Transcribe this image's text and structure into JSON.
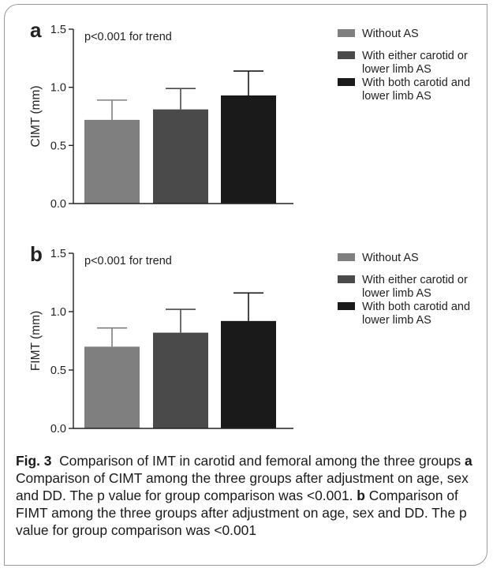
{
  "chart_data": [
    {
      "type": "bar",
      "panel_letter": "a",
      "annotation": "p<0.001 for trend",
      "ylabel": "CIMT (mm)",
      "ylim": [
        0,
        1.5
      ],
      "yticks": [
        "0.0",
        "0.5",
        "1.0",
        "1.5"
      ],
      "categories": [
        "Without AS",
        "With either carotid or lower limb AS",
        "With both carotid and lower limb AS"
      ],
      "values": [
        0.72,
        0.81,
        0.93
      ],
      "errors": [
        0.17,
        0.18,
        0.21
      ],
      "colors": [
        "#7f7f7f",
        "#4a4a4a",
        "#1a1a1a"
      ],
      "legend": [
        {
          "lines": [
            "Without AS"
          ]
        },
        {
          "lines": [
            "With either carotid or",
            "lower limb AS"
          ]
        },
        {
          "lines": [
            "With both carotid and",
            "lower limb AS"
          ]
        }
      ]
    },
    {
      "type": "bar",
      "panel_letter": "b",
      "annotation": "p<0.001 for trend",
      "ylabel": "FIMT (mm)",
      "ylim": [
        0,
        1.5
      ],
      "yticks": [
        "0.0",
        "0.5",
        "1.0",
        "1.5"
      ],
      "categories": [
        "Without AS",
        "With either carotid or lower limb AS",
        "With both carotid and lower limb AS"
      ],
      "values": [
        0.7,
        0.82,
        0.92
      ],
      "errors": [
        0.16,
        0.2,
        0.24
      ],
      "colors": [
        "#7f7f7f",
        "#4a4a4a",
        "#1a1a1a"
      ],
      "legend": [
        {
          "lines": [
            "Without AS"
          ]
        },
        {
          "lines": [
            "With either carotid or",
            "lower limb AS"
          ]
        },
        {
          "lines": [
            "With both carotid and",
            "lower limb AS"
          ]
        }
      ]
    }
  ],
  "caption": {
    "fig_label": "Fig. 3",
    "title": "Comparison of IMT in carotid and femoral among the three groups",
    "a_label": "a",
    "a_text": "Comparison of CIMT among the three groups after adjustment on age, sex and DD. The p value for group comparison was <0.001.",
    "b_label": "b",
    "b_text": "Comparison of FIMT among the three groups after adjustment on age, sex and DD. The p value for group comparison was <0.001"
  }
}
